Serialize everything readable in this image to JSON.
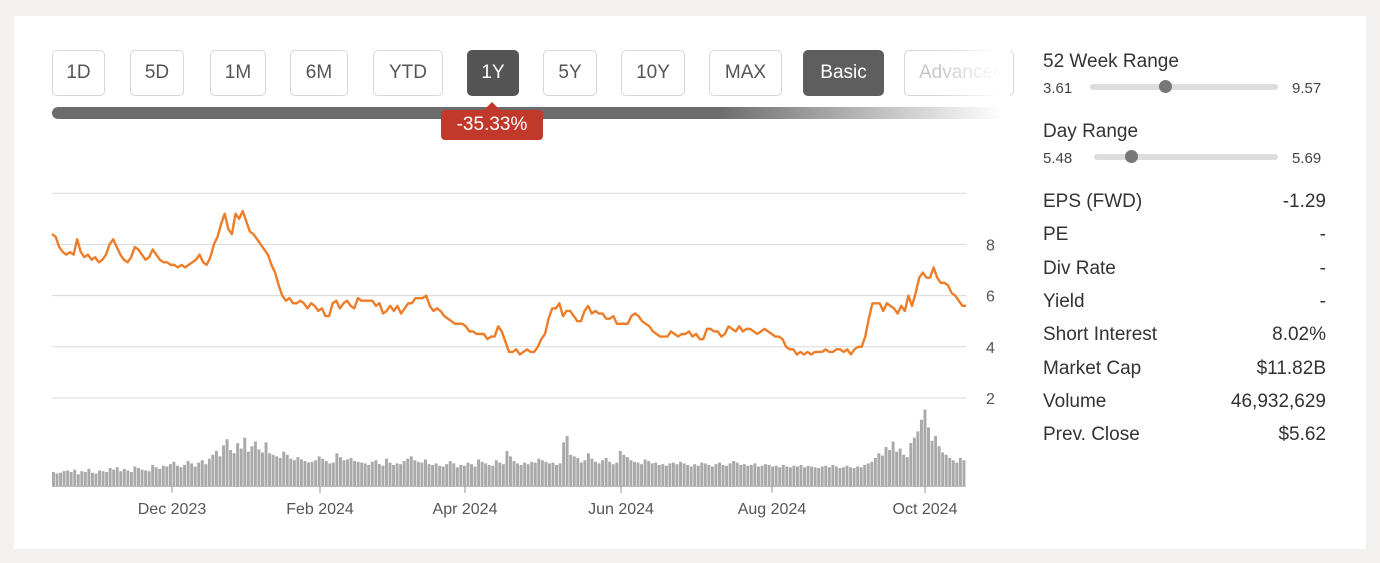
{
  "timeframes": [
    {
      "label": "1D",
      "active": false
    },
    {
      "label": "5D",
      "active": false
    },
    {
      "label": "1M",
      "active": false
    },
    {
      "label": "6M",
      "active": false
    },
    {
      "label": "YTD",
      "active": false
    },
    {
      "label": "1Y",
      "active": true
    },
    {
      "label": "5Y",
      "active": false
    },
    {
      "label": "10Y",
      "active": false
    },
    {
      "label": "MAX",
      "active": false
    }
  ],
  "view_modes": {
    "basic": "Basic",
    "advanced": "Advanced"
  },
  "change_badge": "-35.33%",
  "colors": {
    "line": "#ee7d2a",
    "volume": "#a9a9a9",
    "badge": "#c0392b",
    "grid": "#d9d9d9"
  },
  "chart_data": {
    "type": "line",
    "title": "",
    "xlabel": "",
    "ylabel": "",
    "x_tick_labels": [
      "Dec 2023",
      "Feb 2024",
      "Apr 2024",
      "Jun 2024",
      "Aug 2024",
      "Oct 2024"
    ],
    "y_tick_labels": [
      "8",
      "6",
      "4",
      "2"
    ],
    "ylim": [
      0,
      10
    ],
    "grid": true,
    "series": [
      {
        "values": [
          8.4,
          8.3,
          7.9,
          7.7,
          7.6,
          7.7,
          7.6,
          8.2,
          7.7,
          7.5,
          7.6,
          7.4,
          7.5,
          7.3,
          7.4,
          7.6,
          8.0,
          8.2,
          7.9,
          7.6,
          7.4,
          7.3,
          7.5,
          7.9,
          7.8,
          7.6,
          7.4,
          7.5,
          7.8,
          7.6,
          7.4,
          7.3,
          7.3,
          7.2,
          7.2,
          7.1,
          7.2,
          7.1,
          7.2,
          7.3,
          7.4,
          7.6,
          7.3,
          7.2,
          7.5,
          8.0,
          8.3,
          8.8,
          9.2,
          8.6,
          8.4,
          9.2,
          9.0,
          9.3,
          8.9,
          8.5,
          8.4,
          8.2,
          8.0,
          7.8,
          7.6,
          7.2,
          6.9,
          6.4,
          6.0,
          5.8,
          5.9,
          5.7,
          5.7,
          5.8,
          5.7,
          5.5,
          5.7,
          5.6,
          5.4,
          5.5,
          5.2,
          5.2,
          5.7,
          5.8,
          5.5,
          5.7,
          5.8,
          5.6,
          5.5,
          5.9,
          5.8,
          5.8,
          5.8,
          5.8,
          5.6,
          5.7,
          5.3,
          5.4,
          5.6,
          5.4,
          5.6,
          5.3,
          5.5,
          5.7,
          5.7,
          5.9,
          5.9,
          5.9,
          6.0,
          5.6,
          5.4,
          5.5,
          5.4,
          5.2,
          5.1,
          5.0,
          4.9,
          4.9,
          4.9,
          4.8,
          4.6,
          4.6,
          4.5,
          4.5,
          4.5,
          4.3,
          4.4,
          4.4,
          4.8,
          4.6,
          4.2,
          3.8,
          3.8,
          3.9,
          3.7,
          3.8,
          3.9,
          3.8,
          3.8,
          4.0,
          4.3,
          4.5,
          5.1,
          5.5,
          5.5,
          5.7,
          5.2,
          5.4,
          5.4,
          5.2,
          5.0,
          5.0,
          5.4,
          5.6,
          5.3,
          5.4,
          5.3,
          5.3,
          5.1,
          5.1,
          5.2,
          4.9,
          4.9,
          4.9,
          4.9,
          5.2,
          5.3,
          5.2,
          5.0,
          4.9,
          4.8,
          4.6,
          4.5,
          4.4,
          4.4,
          4.4,
          4.6,
          4.5,
          4.4,
          4.5,
          4.5,
          4.6,
          4.4,
          4.5,
          4.3,
          4.3,
          4.7,
          4.7,
          4.6,
          4.6,
          4.4,
          4.5,
          4.8,
          4.7,
          4.6,
          4.8,
          4.6,
          4.7,
          4.7,
          4.6,
          4.5,
          4.6,
          4.7,
          4.6,
          4.5,
          4.4,
          4.4,
          4.3,
          4.0,
          3.9,
          3.9,
          3.7,
          3.8,
          3.7,
          3.8,
          3.7,
          3.8,
          3.8,
          3.8,
          3.9,
          3.8,
          3.8,
          3.9,
          3.9,
          3.8,
          3.9,
          3.7,
          3.9,
          4.0,
          4.0,
          4.4,
          5.1,
          5.7,
          5.7,
          5.7,
          5.4,
          5.7,
          5.6,
          5.5,
          5.3,
          5.6,
          5.4,
          6.0,
          5.6,
          6.1,
          6.7,
          6.9,
          6.7,
          6.7,
          7.1,
          6.7,
          6.5,
          6.5,
          6.4,
          6.1,
          6.0,
          5.8,
          5.6,
          5.6
        ]
      }
    ],
    "volume": [
      0.18,
      0.16,
      0.17,
      0.19,
      0.2,
      0.18,
      0.21,
      0.15,
      0.19,
      0.18,
      0.22,
      0.17,
      0.16,
      0.2,
      0.19,
      0.18,
      0.23,
      0.21,
      0.24,
      0.19,
      0.22,
      0.2,
      0.18,
      0.25,
      0.23,
      0.21,
      0.2,
      0.19,
      0.27,
      0.24,
      0.22,
      0.26,
      0.25,
      0.28,
      0.31,
      0.26,
      0.24,
      0.27,
      0.32,
      0.29,
      0.25,
      0.3,
      0.33,
      0.28,
      0.35,
      0.4,
      0.45,
      0.38,
      0.52,
      0.6,
      0.46,
      0.42,
      0.55,
      0.48,
      0.62,
      0.44,
      0.51,
      0.57,
      0.47,
      0.43,
      0.56,
      0.42,
      0.4,
      0.38,
      0.36,
      0.44,
      0.4,
      0.35,
      0.33,
      0.37,
      0.34,
      0.32,
      0.3,
      0.31,
      0.33,
      0.38,
      0.35,
      0.32,
      0.29,
      0.3,
      0.42,
      0.37,
      0.33,
      0.34,
      0.36,
      0.32,
      0.31,
      0.3,
      0.29,
      0.27,
      0.31,
      0.33,
      0.28,
      0.26,
      0.35,
      0.3,
      0.27,
      0.29,
      0.28,
      0.32,
      0.35,
      0.38,
      0.33,
      0.31,
      0.3,
      0.34,
      0.28,
      0.27,
      0.29,
      0.26,
      0.25,
      0.28,
      0.32,
      0.29,
      0.24,
      0.27,
      0.26,
      0.3,
      0.28,
      0.25,
      0.34,
      0.31,
      0.29,
      0.27,
      0.26,
      0.33,
      0.3,
      0.28,
      0.45,
      0.38,
      0.32,
      0.29,
      0.27,
      0.3,
      0.28,
      0.31,
      0.3,
      0.35,
      0.33,
      0.31,
      0.29,
      0.3,
      0.27,
      0.29,
      0.56,
      0.64,
      0.4,
      0.38,
      0.36,
      0.3,
      0.33,
      0.42,
      0.35,
      0.31,
      0.29,
      0.33,
      0.36,
      0.31,
      0.28,
      0.3,
      0.45,
      0.4,
      0.37,
      0.33,
      0.31,
      0.3,
      0.28,
      0.34,
      0.32,
      0.29,
      0.3,
      0.27,
      0.28,
      0.26,
      0.29,
      0.3,
      0.28,
      0.31,
      0.29,
      0.27,
      0.25,
      0.28,
      0.26,
      0.3,
      0.29,
      0.27,
      0.25,
      0.28,
      0.3,
      0.27,
      0.26,
      0.29,
      0.32,
      0.3,
      0.27,
      0.28,
      0.26,
      0.27,
      0.29,
      0.25,
      0.26,
      0.28,
      0.27,
      0.25,
      0.26,
      0.24,
      0.27,
      0.25,
      0.24,
      0.26,
      0.25,
      0.27,
      0.24,
      0.26,
      0.25,
      0.24,
      0.23,
      0.25,
      0.26,
      0.24,
      0.27,
      0.25,
      0.23,
      0.24,
      0.26,
      0.24,
      0.23,
      0.25,
      0.24,
      0.27,
      0.29,
      0.31,
      0.36,
      0.42,
      0.39,
      0.5,
      0.46,
      0.57,
      0.44,
      0.48,
      0.4,
      0.37,
      0.55,
      0.62,
      0.7,
      0.85,
      0.98,
      0.75,
      0.58,
      0.64,
      0.51,
      0.43,
      0.4,
      0.36,
      0.33,
      0.3,
      0.36,
      0.33
    ]
  },
  "stats": {
    "week52": {
      "title": "52 Week Range",
      "low": "3.61",
      "high": "9.57",
      "position": 0.4
    },
    "day": {
      "title": "Day Range",
      "low": "5.48",
      "high": "5.69",
      "position": 0.2
    },
    "rows": [
      {
        "label": "EPS (FWD)",
        "value": "-1.29"
      },
      {
        "label": "PE",
        "value": "-"
      },
      {
        "label": "Div Rate",
        "value": "-"
      },
      {
        "label": "Yield",
        "value": "-"
      },
      {
        "label": "Short Interest",
        "value": "8.02%"
      },
      {
        "label": "Market Cap",
        "value": "$11.82B"
      },
      {
        "label": "Volume",
        "value": "46,932,629"
      },
      {
        "label": "Prev. Close",
        "value": "$5.62"
      }
    ]
  }
}
